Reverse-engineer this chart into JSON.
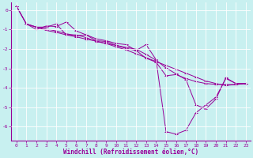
{
  "xlabel": "Windchill (Refroidissement éolien,°C)",
  "bg_color": "#c8f0f0",
  "line_color": "#990099",
  "spine_color": "#990099",
  "xlim": [
    -0.5,
    23.5
  ],
  "ylim": [
    -6.7,
    0.4
  ],
  "xticks": [
    0,
    1,
    2,
    3,
    4,
    5,
    6,
    7,
    8,
    9,
    10,
    11,
    12,
    13,
    14,
    15,
    16,
    17,
    18,
    19,
    20,
    21,
    22,
    23
  ],
  "yticks": [
    0,
    -1,
    -2,
    -3,
    -4,
    -5,
    -6
  ],
  "series": [
    {
      "x": [
        0,
        1,
        2,
        3,
        4,
        5,
        6,
        7,
        8,
        9,
        10,
        11,
        12,
        13,
        14,
        15,
        16,
        17,
        18,
        19,
        20,
        21,
        22,
        23
      ],
      "y": [
        0.2,
        -0.72,
        -0.88,
        -1.05,
        -1.15,
        -1.28,
        -1.38,
        -1.5,
        -1.6,
        -1.72,
        -1.9,
        -2.05,
        -2.25,
        -2.45,
        -2.65,
        -2.85,
        -3.05,
        -3.25,
        -3.45,
        -3.65,
        -3.78,
        -3.88,
        -3.83,
        -3.78
      ]
    },
    {
      "x": [
        0,
        1,
        2,
        3,
        4,
        5,
        6,
        7,
        8,
        9,
        10,
        11,
        12,
        13,
        14,
        15,
        16,
        17,
        18,
        19,
        20,
        21,
        22,
        23
      ],
      "y": [
        0.2,
        -0.72,
        -1.0,
        -0.82,
        -0.85,
        -0.62,
        -1.08,
        -1.28,
        -1.48,
        -1.58,
        -1.72,
        -1.78,
        -2.08,
        -1.78,
        -2.55,
        -6.25,
        -6.38,
        -6.18,
        -5.28,
        -4.88,
        -4.48,
        -3.52,
        -3.78,
        -3.78
      ]
    },
    {
      "x": [
        0,
        1,
        2,
        3,
        4,
        5,
        6,
        7,
        8,
        9,
        10,
        11,
        12,
        13,
        14,
        15,
        16,
        17,
        18,
        19,
        20,
        21,
        22,
        23
      ],
      "y": [
        0.2,
        -0.72,
        -0.88,
        -0.98,
        -1.08,
        -1.22,
        -1.32,
        -1.28,
        -1.58,
        -1.62,
        -1.82,
        -1.98,
        -2.08,
        -2.48,
        -2.68,
        -3.38,
        -3.32,
        -3.52,
        -3.68,
        -3.78,
        -3.82,
        -3.83,
        -3.83,
        -3.78
      ]
    },
    {
      "x": [
        1,
        2,
        3,
        4,
        5,
        6,
        7,
        8,
        9,
        10,
        11,
        12,
        13,
        14,
        15,
        16,
        17,
        18,
        19,
        20,
        21,
        22,
        23
      ],
      "y": [
        -0.72,
        -0.88,
        -0.88,
        -0.72,
        -1.28,
        -1.28,
        -1.42,
        -1.62,
        -1.72,
        -1.82,
        -1.92,
        -2.02,
        -2.28,
        -2.58,
        -2.98,
        -3.28,
        -3.58,
        -4.88,
        -5.08,
        -4.58,
        -3.48,
        -3.78,
        -3.78
      ]
    }
  ]
}
